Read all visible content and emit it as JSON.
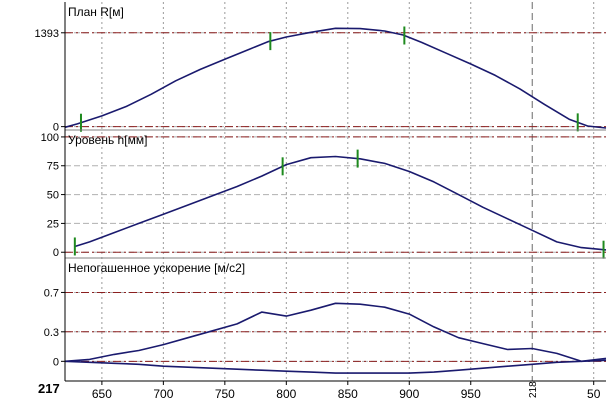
{
  "chart_data": {
    "type": "line",
    "x_axis": {
      "ticks": [
        650,
        700,
        750,
        800,
        850,
        900,
        950,
        50
      ],
      "tick_labels": [
        "650",
        "700",
        "750",
        "800",
        "850",
        "900",
        "950",
        "50"
      ],
      "start_label": "217",
      "marker_label": "218",
      "range": [
        620,
        1060
      ],
      "marker_at": 1000
    },
    "panels": [
      {
        "id": "plan",
        "title": "План R[м]",
        "ylim": [
          -50,
          1850
        ],
        "ticks": [
          0,
          1393
        ],
        "tick_labels": [
          "0",
          "1393"
        ],
        "reference_lines": [
          {
            "value": 1393,
            "style": "dash-dot"
          },
          {
            "value": 0,
            "style": "dash-dot"
          }
        ],
        "series": [
          {
            "x": [
              620,
              630,
              650,
              670,
              690,
              710,
              730,
              750,
              770,
              785,
              800,
              820,
              840,
              860,
              880,
              895,
              910,
              930,
              950,
              970,
              990,
              1010,
              1030,
              1045,
              1060
            ],
            "y": [
              -10,
              40,
              160,
              300,
              480,
              680,
              850,
              1000,
              1150,
              1260,
              1330,
              1400,
              1460,
              1455,
              1420,
              1360,
              1250,
              1090,
              930,
              760,
              560,
              330,
              110,
              10,
              -20
            ]
          }
        ],
        "markers_x": [
          633,
          787,
          896,
          1037
        ]
      },
      {
        "id": "level",
        "title": "Уровень h[мм]",
        "ylim": [
          -5,
          106
        ],
        "ticks": [
          0,
          25,
          50,
          75,
          100
        ],
        "tick_labels": [
          "0",
          "25",
          "50",
          "75",
          "100"
        ],
        "reference_lines": [
          {
            "value": 100,
            "style": "dash-dot"
          },
          {
            "value": 0,
            "style": "dash-dot"
          }
        ],
        "series": [
          {
            "x": [
              628,
              640,
              660,
              680,
              700,
              720,
              740,
              760,
              780,
              800,
              820,
              840,
              860,
              880,
              900,
              920,
              940,
              960,
              980,
              1000,
              1020,
              1040,
              1060
            ],
            "y": [
              5,
              9,
              17,
              25,
              33,
              41,
              49,
              57,
              66,
              76,
              82,
              83,
              81,
              77,
              70,
              61,
              50,
              39,
              29,
              19,
              9,
              4,
              2
            ]
          }
        ],
        "markers_x": [
          628,
          797,
          858,
          1058
        ]
      },
      {
        "id": "accel",
        "title": "Непогашенное ускорение [м/с2]",
        "ylim": [
          -0.2,
          1.05
        ],
        "ticks": [
          0,
          0.3,
          0.7
        ],
        "tick_labels": [
          "0",
          "0.3",
          "0.7"
        ],
        "reference_lines": [
          {
            "value": 0.7,
            "style": "dash-dot"
          },
          {
            "value": 0.3,
            "style": "dash-dot"
          },
          {
            "value": 0,
            "style": "dash-dot"
          }
        ],
        "series": [
          {
            "x": [
              620,
              640,
              660,
              680,
              700,
              720,
              740,
              760,
              780,
              800,
              820,
              840,
              860,
              880,
              900,
              920,
              940,
              960,
              980,
              1000,
              1020,
              1040,
              1060
            ],
            "y": [
              0.0,
              0.02,
              0.07,
              0.11,
              0.17,
              0.24,
              0.31,
              0.38,
              0.5,
              0.46,
              0.52,
              0.59,
              0.58,
              0.55,
              0.48,
              0.35,
              0.24,
              0.18,
              0.12,
              0.13,
              0.08,
              0.0,
              0.03
            ]
          },
          {
            "x": [
              620,
              640,
              660,
              680,
              700,
              720,
              740,
              760,
              780,
              800,
              820,
              840,
              860,
              880,
              900,
              920,
              940,
              960,
              980,
              1000,
              1020,
              1040,
              1060
            ],
            "y": [
              0.0,
              -0.01,
              -0.02,
              -0.03,
              -0.05,
              -0.06,
              -0.07,
              -0.08,
              -0.09,
              -0.1,
              -0.11,
              -0.12,
              -0.12,
              -0.12,
              -0.12,
              -0.11,
              -0.09,
              -0.07,
              -0.05,
              -0.03,
              -0.01,
              0.0,
              0.01
            ]
          }
        ],
        "markers_x": []
      }
    ],
    "colors": {
      "series": "#1a1a6e",
      "marker": "#1e8a1e",
      "reference": "#8b1f1f",
      "grid": "#9a9a9a",
      "axis_text": "#000000"
    },
    "grid": true
  }
}
